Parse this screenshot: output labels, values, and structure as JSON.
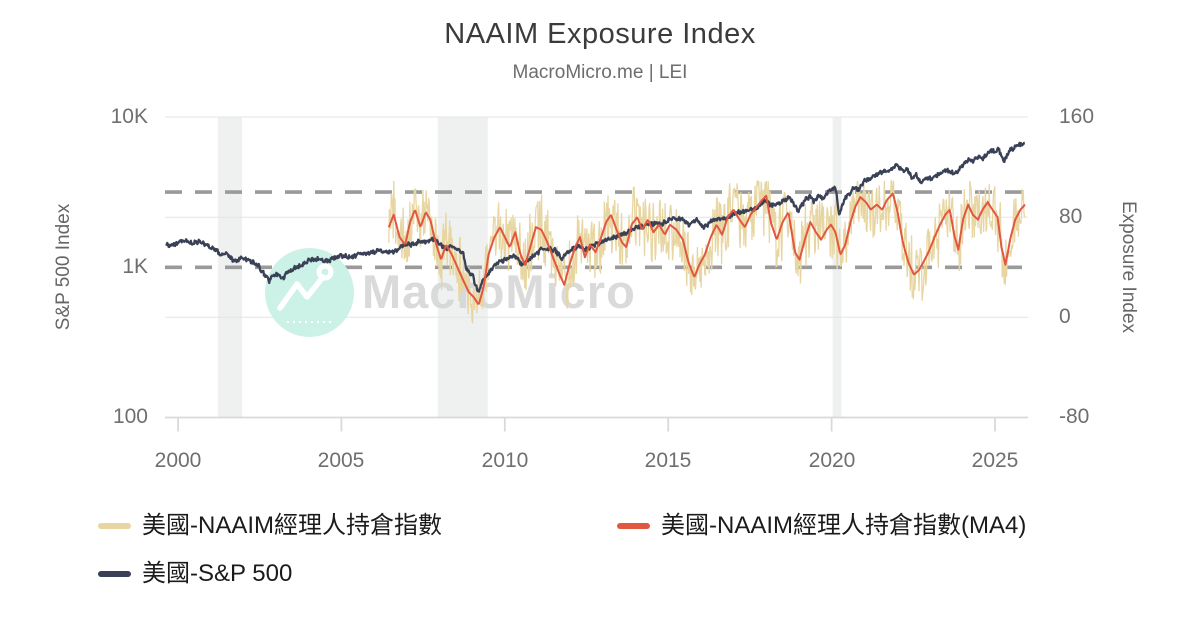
{
  "header": {
    "title": "NAAIM Exposure Index",
    "subtitle": "MacroMicro.me | LEI"
  },
  "watermark": {
    "text": "MacroMicro",
    "icon": "macromicro-logo-icon",
    "circle_color": "#ccf2e7",
    "text_color": "#d2d2d2"
  },
  "chart_data": {
    "type": "line",
    "title": "NAAIM Exposure Index",
    "subtitle": "MacroMicro.me | LEI",
    "grid": true,
    "legend_position": "bottom-left",
    "x_axis": {
      "range": [
        1999.6,
        2025.95
      ],
      "ticks": [
        2000,
        2005,
        2010,
        2015,
        2020,
        2025
      ]
    },
    "left_axis": {
      "title": "S&P 500 Index",
      "type": "log",
      "range": [
        100,
        10000
      ],
      "tick_labels": [
        "10K",
        "1K",
        "100"
      ],
      "tick_values": [
        10000,
        1000,
        100
      ]
    },
    "right_axis": {
      "title": "Exposure Index",
      "type": "linear",
      "range": [
        -80,
        160
      ],
      "tick_labels": [
        "160",
        "80",
        "0",
        "-80"
      ],
      "tick_values": [
        160,
        80,
        0,
        -80
      ],
      "gridline_values": [
        160,
        80,
        0
      ]
    },
    "reference_lines": [
      {
        "axis": "right",
        "value": 100,
        "style": "dashed",
        "color": "#9a9a9a"
      },
      {
        "axis": "left",
        "value": 1000,
        "style": "dashed",
        "color": "#9a9a9a"
      }
    ],
    "recession_bands": {
      "color": "#eff1f1",
      "ranges": [
        [
          2001.22,
          2001.96
        ],
        [
          2007.95,
          2009.48
        ],
        [
          2020.03,
          2020.3
        ]
      ]
    },
    "series": [
      {
        "name": "美國-NAAIM經理人持倉指數",
        "color": "#e8d6a2",
        "axis": "right",
        "line_width": 1.3,
        "derived": "weekly_noise_around_ma4",
        "noise_amplitude": 32,
        "noise_seed": 7,
        "clip": [
          -12,
          109
        ],
        "step_years": 0.019,
        "start": 2006.45,
        "end": 2025.92
      },
      {
        "name": "美國-NAAIM經理人持倉指數(MA4)",
        "color": "#e2573f",
        "axis": "right",
        "line_width": 2,
        "points": [
          [
            2006.45,
            72
          ],
          [
            2006.6,
            82
          ],
          [
            2006.78,
            64
          ],
          [
            2006.95,
            58
          ],
          [
            2007.1,
            76
          ],
          [
            2007.25,
            86
          ],
          [
            2007.42,
            72
          ],
          [
            2007.58,
            84
          ],
          [
            2007.72,
            78
          ],
          [
            2007.88,
            60
          ],
          [
            2008.05,
            46
          ],
          [
            2008.2,
            58
          ],
          [
            2008.38,
            50
          ],
          [
            2008.55,
            40
          ],
          [
            2008.72,
            30
          ],
          [
            2008.9,
            20
          ],
          [
            2009.05,
            16
          ],
          [
            2009.2,
            10
          ],
          [
            2009.35,
            24
          ],
          [
            2009.5,
            50
          ],
          [
            2009.68,
            64
          ],
          [
            2009.85,
            72
          ],
          [
            2010.0,
            64
          ],
          [
            2010.15,
            56
          ],
          [
            2010.32,
            68
          ],
          [
            2010.48,
            50
          ],
          [
            2010.62,
            42
          ],
          [
            2010.8,
            58
          ],
          [
            2010.95,
            72
          ],
          [
            2011.12,
            70
          ],
          [
            2011.3,
            60
          ],
          [
            2011.5,
            46
          ],
          [
            2011.68,
            34
          ],
          [
            2011.82,
            26
          ],
          [
            2011.98,
            42
          ],
          [
            2012.15,
            56
          ],
          [
            2012.3,
            64
          ],
          [
            2012.45,
            48
          ],
          [
            2012.6,
            58
          ],
          [
            2012.78,
            52
          ],
          [
            2012.95,
            64
          ],
          [
            2013.1,
            76
          ],
          [
            2013.25,
            82
          ],
          [
            2013.42,
            70
          ],
          [
            2013.58,
            60
          ],
          [
            2013.72,
            56
          ],
          [
            2013.88,
            74
          ],
          [
            2014.05,
            80
          ],
          [
            2014.2,
            70
          ],
          [
            2014.38,
            78
          ],
          [
            2014.55,
            68
          ],
          [
            2014.72,
            74
          ],
          [
            2014.9,
            66
          ],
          [
            2015.05,
            74
          ],
          [
            2015.25,
            70
          ],
          [
            2015.45,
            62
          ],
          [
            2015.62,
            44
          ],
          [
            2015.8,
            32
          ],
          [
            2015.95,
            42
          ],
          [
            2016.12,
            50
          ],
          [
            2016.3,
            64
          ],
          [
            2016.48,
            74
          ],
          [
            2016.65,
            66
          ],
          [
            2016.82,
            80
          ],
          [
            2017.0,
            86
          ],
          [
            2017.18,
            78
          ],
          [
            2017.35,
            72
          ],
          [
            2017.52,
            82
          ],
          [
            2017.7,
            88
          ],
          [
            2017.88,
            94
          ],
          [
            2018.0,
            97
          ],
          [
            2018.14,
            76
          ],
          [
            2018.32,
            62
          ],
          [
            2018.5,
            76
          ],
          [
            2018.68,
            84
          ],
          [
            2018.88,
            52
          ],
          [
            2019.02,
            46
          ],
          [
            2019.18,
            62
          ],
          [
            2019.35,
            76
          ],
          [
            2019.52,
            68
          ],
          [
            2019.68,
            62
          ],
          [
            2019.85,
            70
          ],
          [
            2019.98,
            74
          ],
          [
            2020.12,
            68
          ],
          [
            2020.27,
            50
          ],
          [
            2020.42,
            58
          ],
          [
            2020.58,
            76
          ],
          [
            2020.72,
            88
          ],
          [
            2020.88,
            96
          ],
          [
            2021.05,
            92
          ],
          [
            2021.2,
            86
          ],
          [
            2021.38,
            90
          ],
          [
            2021.55,
            86
          ],
          [
            2021.7,
            94
          ],
          [
            2021.88,
            99
          ],
          [
            2022.02,
            84
          ],
          [
            2022.18,
            60
          ],
          [
            2022.35,
            44
          ],
          [
            2022.52,
            34
          ],
          [
            2022.68,
            38
          ],
          [
            2022.85,
            46
          ],
          [
            2023.0,
            54
          ],
          [
            2023.15,
            64
          ],
          [
            2023.32,
            74
          ],
          [
            2023.48,
            82
          ],
          [
            2023.62,
            86
          ],
          [
            2023.75,
            66
          ],
          [
            2023.88,
            54
          ],
          [
            2024.02,
            78
          ],
          [
            2024.18,
            90
          ],
          [
            2024.32,
            82
          ],
          [
            2024.48,
            78
          ],
          [
            2024.62,
            86
          ],
          [
            2024.78,
            92
          ],
          [
            2024.92,
            86
          ],
          [
            2025.08,
            80
          ],
          [
            2025.2,
            56
          ],
          [
            2025.32,
            42
          ],
          [
            2025.48,
            64
          ],
          [
            2025.62,
            78
          ],
          [
            2025.78,
            86
          ],
          [
            2025.92,
            90
          ]
        ]
      },
      {
        "name": "美國-S&P 500",
        "color": "#3a4156",
        "axis": "left",
        "line_width": 2.3,
        "jitter_log_amplitude": 0.013,
        "step_years": 0.02,
        "points": [
          [
            1999.63,
            1420
          ],
          [
            1999.8,
            1400
          ],
          [
            2000.0,
            1450
          ],
          [
            2000.22,
            1500
          ],
          [
            2000.45,
            1440
          ],
          [
            2000.65,
            1480
          ],
          [
            2000.9,
            1390
          ],
          [
            2001.1,
            1340
          ],
          [
            2001.3,
            1210
          ],
          [
            2001.45,
            1240
          ],
          [
            2001.72,
            1090
          ],
          [
            2001.95,
            1150
          ],
          [
            2002.2,
            1110
          ],
          [
            2002.45,
            1030
          ],
          [
            2002.6,
            920
          ],
          [
            2002.78,
            810
          ],
          [
            2002.95,
            900
          ],
          [
            2003.2,
            850
          ],
          [
            2003.45,
            960
          ],
          [
            2003.7,
            1010
          ],
          [
            2004.0,
            1120
          ],
          [
            2004.3,
            1130
          ],
          [
            2004.6,
            1100
          ],
          [
            2004.95,
            1200
          ],
          [
            2005.3,
            1170
          ],
          [
            2005.6,
            1220
          ],
          [
            2005.8,
            1230
          ],
          [
            2006.1,
            1290
          ],
          [
            2006.4,
            1270
          ],
          [
            2006.6,
            1270
          ],
          [
            2006.9,
            1400
          ],
          [
            2007.2,
            1430
          ],
          [
            2007.42,
            1500
          ],
          [
            2007.6,
            1470
          ],
          [
            2007.78,
            1560
          ],
          [
            2007.95,
            1470
          ],
          [
            2008.2,
            1330
          ],
          [
            2008.4,
            1390
          ],
          [
            2008.6,
            1280
          ],
          [
            2008.72,
            1250
          ],
          [
            2008.82,
            970
          ],
          [
            2009.0,
            900
          ],
          [
            2009.18,
            680
          ],
          [
            2009.35,
            830
          ],
          [
            2009.55,
            950
          ],
          [
            2009.75,
            1060
          ],
          [
            2010.0,
            1120
          ],
          [
            2010.3,
            1200
          ],
          [
            2010.52,
            1050
          ],
          [
            2010.7,
            1100
          ],
          [
            2010.95,
            1220
          ],
          [
            2011.15,
            1320
          ],
          [
            2011.35,
            1330
          ],
          [
            2011.55,
            1290
          ],
          [
            2011.76,
            1130
          ],
          [
            2011.9,
            1240
          ],
          [
            2012.05,
            1310
          ],
          [
            2012.25,
            1400
          ],
          [
            2012.45,
            1300
          ],
          [
            2012.65,
            1380
          ],
          [
            2012.85,
            1440
          ],
          [
            2013.05,
            1500
          ],
          [
            2013.3,
            1570
          ],
          [
            2013.55,
            1650
          ],
          [
            2013.8,
            1730
          ],
          [
            2014.0,
            1840
          ],
          [
            2014.25,
            1870
          ],
          [
            2014.55,
            1960
          ],
          [
            2014.78,
            1920
          ],
          [
            2015.0,
            2060
          ],
          [
            2015.2,
            2100
          ],
          [
            2015.42,
            2110
          ],
          [
            2015.65,
            1890
          ],
          [
            2015.85,
            2080
          ],
          [
            2016.1,
            1840
          ],
          [
            2016.35,
            2060
          ],
          [
            2016.6,
            2090
          ],
          [
            2016.85,
            2160
          ],
          [
            2017.1,
            2320
          ],
          [
            2017.4,
            2390
          ],
          [
            2017.7,
            2470
          ],
          [
            2018.0,
            2820
          ],
          [
            2018.1,
            2590
          ],
          [
            2018.35,
            2650
          ],
          [
            2018.55,
            2780
          ],
          [
            2018.72,
            2920
          ],
          [
            2018.98,
            2350
          ],
          [
            2019.2,
            2830
          ],
          [
            2019.35,
            2940
          ],
          [
            2019.45,
            2750
          ],
          [
            2019.6,
            3000
          ],
          [
            2019.75,
            2890
          ],
          [
            2019.95,
            3230
          ],
          [
            2020.12,
            3380
          ],
          [
            2020.23,
            2290
          ],
          [
            2020.4,
            2850
          ],
          [
            2020.55,
            3100
          ],
          [
            2020.68,
            3400
          ],
          [
            2020.82,
            3300
          ],
          [
            2021.0,
            3760
          ],
          [
            2021.2,
            3900
          ],
          [
            2021.4,
            4180
          ],
          [
            2021.65,
            4450
          ],
          [
            2021.73,
            4350
          ],
          [
            2021.95,
            4700
          ],
          [
            2022.0,
            4790
          ],
          [
            2022.18,
            4350
          ],
          [
            2022.3,
            4580
          ],
          [
            2022.47,
            3900
          ],
          [
            2022.6,
            4140
          ],
          [
            2022.73,
            3640
          ],
          [
            2022.9,
            3960
          ],
          [
            2023.05,
            3900
          ],
          [
            2023.25,
            4100
          ],
          [
            2023.5,
            4450
          ],
          [
            2023.8,
            4180
          ],
          [
            2024.0,
            4770
          ],
          [
            2024.2,
            5230
          ],
          [
            2024.32,
            5060
          ],
          [
            2024.5,
            5460
          ],
          [
            2024.62,
            5250
          ],
          [
            2024.85,
            6000
          ],
          [
            2025.0,
            5880
          ],
          [
            2025.12,
            6120
          ],
          [
            2025.27,
            5050
          ],
          [
            2025.45,
            5960
          ],
          [
            2025.6,
            6280
          ],
          [
            2025.78,
            6550
          ],
          [
            2025.92,
            6850
          ]
        ]
      }
    ],
    "colors": {
      "grid": "#e4e6e6",
      "axis_line": "#d8dada",
      "band": "#eff1f1",
      "tick_text": "#6f6f6f",
      "dashed": "#9a9a9a"
    }
  }
}
